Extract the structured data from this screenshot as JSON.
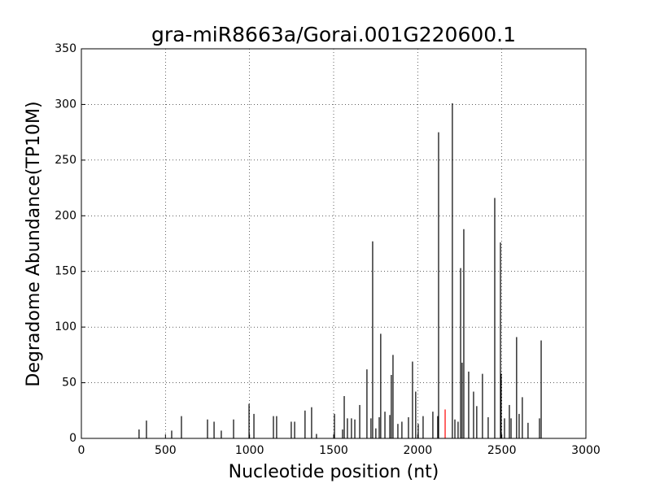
{
  "chart_data": {
    "type": "bar",
    "title": "gra-miR8663a/Gorai.001G220600.1",
    "x_label": "Nucleotide position (nt)",
    "y_label": "Degradome Abundance(TP10M)",
    "xlim": [
      0,
      3000
    ],
    "ylim": [
      0,
      350
    ],
    "xticks": [
      0,
      500,
      1000,
      1500,
      2000,
      2500,
      3000
    ],
    "yticks": [
      0,
      50,
      100,
      150,
      200,
      250,
      300,
      350
    ],
    "grid": true,
    "series": [
      {
        "color": "#000000",
        "x": [
          343,
          387,
          537,
          595,
          750,
          789,
          832,
          905,
          997,
          1026,
          1142,
          1161,
          1248,
          1268,
          1330,
          1369,
          1398,
          1505,
          1553,
          1563,
          1582,
          1606,
          1626,
          1655,
          1698,
          1722,
          1732,
          1751,
          1771,
          1780,
          1805,
          1834,
          1843,
          1853,
          1882,
          1906,
          1945,
          1969,
          1988,
          2003,
          2032,
          2090,
          2119,
          2124,
          2206,
          2221,
          2240,
          2255,
          2264,
          2274,
          2303,
          2332,
          2351,
          2385,
          2419,
          2458,
          2492,
          2496,
          2516,
          2545,
          2555,
          2588,
          2603,
          2622,
          2656,
          2724,
          2734
        ],
        "values": [
          8,
          16,
          7,
          20,
          17,
          15,
          7,
          17,
          31,
          22,
          20,
          20,
          15,
          15,
          25,
          28,
          4,
          22,
          8,
          38,
          18,
          18,
          17,
          30,
          62,
          18,
          177,
          9,
          19,
          94,
          24,
          21,
          57,
          75,
          13,
          15,
          19,
          69,
          42,
          13,
          20,
          24,
          20,
          275,
          301,
          17,
          15,
          153,
          68,
          188,
          60,
          42,
          29,
          58,
          19,
          216,
          176,
          58,
          18,
          30,
          18,
          91,
          22,
          37,
          14,
          18,
          88
        ]
      },
      {
        "color": "#ff0000",
        "x": [
          2163
        ],
        "values": [
          26
        ]
      }
    ]
  }
}
